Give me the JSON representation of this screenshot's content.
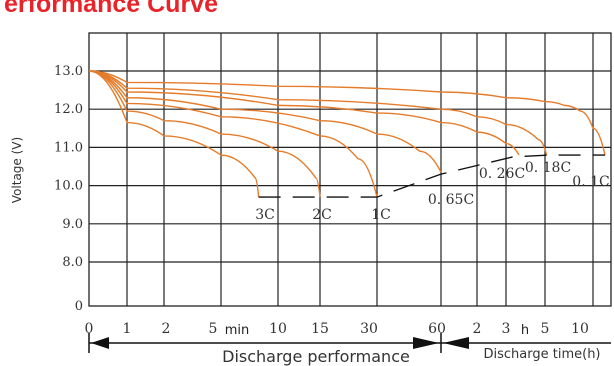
{
  "title": "erformance Curve",
  "chart_data": {
    "type": "line",
    "title": "erformance Curve",
    "ylabel": "Voltage (V)",
    "ylim": [
      0,
      13.5
    ],
    "y_ticks": [
      "13.0",
      "12.0",
      "11.0",
      "10.0",
      "9.0",
      "8.0",
      "0"
    ],
    "y_tick_values": [
      13,
      12,
      11,
      10,
      9,
      8,
      0
    ],
    "x_ticks": [
      "0",
      "1",
      "2",
      "5",
      "10",
      "15",
      "30",
      "60",
      "2",
      "3",
      "5",
      "10"
    ],
    "x_unit_min": "min",
    "x_unit_h": "h",
    "footer_left": "Discharge performance",
    "footer_right": "Discharge time(h)",
    "grid": true,
    "series": [
      {
        "name": "3C",
        "x": [
          0,
          1,
          2,
          5,
          8,
          8.3
        ],
        "y": [
          13.0,
          11.65,
          11.3,
          10.8,
          10.2,
          9.7
        ]
      },
      {
        "name": "2C",
        "x": [
          0,
          1,
          2,
          5,
          10,
          14.5,
          15
        ],
        "y": [
          13.0,
          11.95,
          11.7,
          11.35,
          10.9,
          10.2,
          9.7
        ]
      },
      {
        "name": "1C",
        "x": [
          0,
          1,
          5,
          15,
          25,
          30
        ],
        "y": [
          13.0,
          12.15,
          11.8,
          11.3,
          10.7,
          9.7
        ]
      },
      {
        "name": "0.65C",
        "x": [
          0,
          1,
          5,
          15,
          30,
          50,
          60
        ],
        "y": [
          13.0,
          12.3,
          12.0,
          11.7,
          11.35,
          10.9,
          10.35
        ]
      },
      {
        "name": "0.26C",
        "x": [
          0,
          1,
          10,
          30,
          60,
          120,
          180,
          220
        ],
        "y": [
          13.0,
          12.45,
          12.1,
          11.9,
          11.65,
          11.4,
          11.1,
          10.8
        ]
      },
      {
        "name": "0.18C",
        "x": [
          0,
          1,
          10,
          60,
          120,
          180,
          280,
          310
        ],
        "y": [
          13.0,
          12.55,
          12.25,
          12.0,
          11.8,
          11.6,
          11.2,
          10.8
        ]
      },
      {
        "name": "0.1C",
        "x": [
          0,
          1,
          10,
          60,
          180,
          300,
          420,
          520,
          600,
          640
        ],
        "y": [
          13.0,
          12.7,
          12.6,
          12.45,
          12.3,
          12.2,
          12.1,
          11.95,
          11.5,
          10.8
        ]
      }
    ],
    "cutoff_line": {
      "x": [
        8.3,
        15,
        30,
        60,
        200,
        330,
        640
      ],
      "y": [
        9.7,
        9.7,
        9.7,
        10.3,
        10.75,
        10.8,
        10.8
      ]
    },
    "colors": {
      "curve": "#e57c2b",
      "grid": "#222222",
      "title": "#e8242a"
    }
  }
}
